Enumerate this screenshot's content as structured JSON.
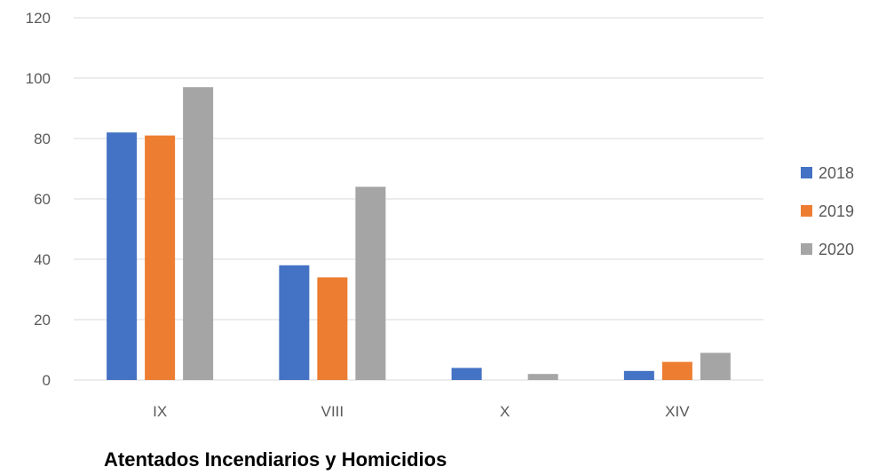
{
  "chart_data": {
    "type": "bar",
    "title": "Atentados Incendiarios y Homicidios",
    "xlabel": "",
    "ylabel": "",
    "categories": [
      "IX",
      "VIII",
      "X",
      "XIV"
    ],
    "series": [
      {
        "name": "2018",
        "values": [
          82,
          38,
          4,
          3
        ],
        "color": "#4472c4"
      },
      {
        "name": "2019",
        "values": [
          81,
          34,
          0,
          6
        ],
        "color": "#ed7d31"
      },
      {
        "name": "2020",
        "values": [
          97,
          64,
          2,
          9
        ],
        "color": "#a5a5a5"
      }
    ],
    "ylim": [
      0,
      120
    ],
    "yticks": [
      "0",
      "20",
      "40",
      "60",
      "80",
      "100",
      "120"
    ],
    "grid": true,
    "legend_position": "right"
  }
}
